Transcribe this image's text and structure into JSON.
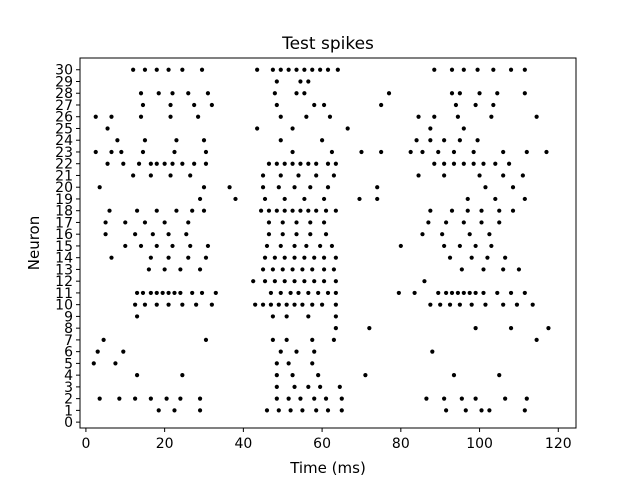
{
  "chart_data": {
    "type": "scatter",
    "title": "Test spikes",
    "xlabel": "Time (ms)",
    "ylabel": "Neuron",
    "xlim": [
      -1.5,
      124.5
    ],
    "ylim": [
      -0.5,
      31
    ],
    "xticks": [
      0,
      20,
      40,
      60,
      80,
      100,
      120
    ],
    "yticks": [
      0,
      1,
      2,
      3,
      4,
      5,
      6,
      7,
      8,
      9,
      10,
      11,
      12,
      13,
      14,
      15,
      16,
      17,
      18,
      19,
      20,
      21,
      22,
      23,
      24,
      25,
      26,
      27,
      28,
      29,
      30
    ],
    "marker_color": "#000000",
    "grid": false,
    "spikes": [
      {
        "neuron": 1,
        "times": [
          18.5,
          22.5,
          29.0,
          46.0,
          49.0,
          52.0,
          55.0,
          58.5,
          61.5,
          65.0,
          91.5,
          96.5,
          100.5,
          102.5,
          111.5
        ]
      },
      {
        "neuron": 2,
        "times": [
          3.5,
          8.5,
          12.5,
          16.5,
          20.5,
          24.0,
          29.0,
          48.5,
          51.5,
          54.5,
          58.0,
          61.0,
          65.0,
          86.5,
          91.0,
          95.5,
          99.0,
          106.5,
          112.0
        ]
      },
      {
        "neuron": 3,
        "times": [
          48.5,
          53.0,
          56.5,
          59.5,
          64.5
        ]
      },
      {
        "neuron": 4,
        "times": [
          13.0,
          24.5,
          48.5,
          52.5,
          59.0,
          71.0,
          93.5,
          105.0
        ]
      },
      {
        "neuron": 5,
        "times": [
          2.0,
          7.5,
          48.5,
          51.5,
          57.5
        ]
      },
      {
        "neuron": 6,
        "times": [
          3.0,
          9.5,
          49.5,
          53.5,
          58.0,
          88.0
        ]
      },
      {
        "neuron": 7,
        "times": [
          4.5,
          30.5,
          47.5,
          51.0,
          57.5,
          63.0,
          114.5
        ]
      },
      {
        "neuron": 8,
        "times": [
          63.5,
          72.0,
          99.0,
          108.0,
          117.5
        ]
      },
      {
        "neuron": 9,
        "times": [
          13.0,
          47.5,
          51.0,
          56.5,
          63.5
        ]
      },
      {
        "neuron": 10,
        "times": [
          12.5,
          15.0,
          18.0,
          21.0,
          24.5,
          28.0,
          32.0,
          43.0,
          45.0,
          47.0,
          49.0,
          51.0,
          53.0,
          55.0,
          57.5,
          60.0,
          63.5,
          87.5,
          90.0,
          92.5,
          95.0,
          98.0,
          101.5,
          106.0,
          109.5,
          113.5
        ]
      },
      {
        "neuron": 11,
        "times": [
          13.0,
          14.5,
          16.5,
          18.0,
          19.5,
          21.0,
          22.5,
          24.0,
          27.0,
          29.5,
          33.0,
          47.0,
          49.5,
          52.0,
          54.0,
          56.5,
          59.0,
          61.5,
          63.5,
          79.5,
          83.5,
          89.5,
          91.5,
          93.0,
          94.5,
          96.0,
          97.5,
          99.0,
          101.0,
          104.5,
          108.0,
          111.5
        ]
      },
      {
        "neuron": 12,
        "times": [
          42.5,
          45.5,
          48.0,
          50.5,
          53.0,
          55.5,
          58.0,
          60.5,
          63.5,
          86.0
        ]
      },
      {
        "neuron": 13,
        "times": [
          16.0,
          20.0,
          24.0,
          29.0,
          45.0,
          47.5,
          50.0,
          52.5,
          55.0,
          57.5,
          60.5,
          63.0,
          95.5,
          101.0,
          106.0,
          110.0
        ]
      },
      {
        "neuron": 14,
        "times": [
          6.5,
          16.5,
          21.0,
          26.0,
          30.5,
          45.5,
          48.0,
          50.5,
          53.0,
          55.5,
          58.0,
          60.5,
          63.5,
          92.5,
          98.0,
          102.0,
          106.5
        ]
      },
      {
        "neuron": 15,
        "times": [
          10.0,
          14.0,
          18.0,
          22.0,
          26.5,
          31.0,
          46.0,
          49.5,
          53.0,
          56.0,
          59.5,
          62.5,
          80.0,
          91.0,
          95.0,
          99.0,
          103.0
        ]
      },
      {
        "neuron": 16,
        "times": [
          5.0,
          12.5,
          17.0,
          21.0,
          25.5,
          46.5,
          50.0,
          53.5,
          57.0,
          61.0,
          85.5,
          90.5,
          97.5,
          102.5
        ]
      },
      {
        "neuron": 17,
        "times": [
          5.0,
          10.0,
          15.0,
          20.0,
          26.0,
          46.5,
          50.0,
          53.5,
          57.0,
          60.5,
          87.0,
          91.5,
          96.0,
          100.5,
          105.0
        ]
      },
      {
        "neuron": 18,
        "times": [
          6.0,
          13.0,
          18.0,
          23.0,
          27.0,
          30.0,
          44.5,
          46.5,
          48.5,
          50.5,
          52.5,
          54.5,
          56.5,
          58.5,
          61.0,
          63.5,
          87.5,
          93.0,
          97.0,
          100.5,
          105.0,
          108.5
        ]
      },
      {
        "neuron": 19,
        "times": [
          29.0,
          38.0,
          45.5,
          50.5,
          55.5,
          60.5,
          69.5,
          74.0,
          97.0,
          104.0,
          111.5
        ]
      },
      {
        "neuron": 20,
        "times": [
          3.5,
          30.0,
          36.5,
          45.0,
          49.0,
          53.0,
          57.0,
          61.5,
          74.0,
          101.5,
          108.5
        ]
      },
      {
        "neuron": 21,
        "times": [
          12.0,
          16.5,
          21.5,
          26.5,
          45.0,
          49.5,
          54.0,
          58.5,
          63.0,
          84.5,
          91.0,
          100.0,
          106.0,
          111.0
        ]
      },
      {
        "neuron": 22,
        "times": [
          5.5,
          9.5,
          13.5,
          16.5,
          18.0,
          20.0,
          22.0,
          24.5,
          27.5,
          30.5,
          46.5,
          48.5,
          50.5,
          52.5,
          54.5,
          56.5,
          58.5,
          61.5,
          63.5,
          88.5,
          91.0,
          93.5,
          96.0,
          98.5,
          101.0,
          104.0,
          107.5
        ]
      },
      {
        "neuron": 23,
        "times": [
          2.5,
          6.5,
          9.0,
          14.5,
          22.5,
          30.5,
          52.5,
          62.5,
          70.0,
          75.0,
          82.5,
          85.5,
          89.5,
          93.5,
          98.5,
          106.0,
          112.0,
          117.0
        ]
      },
      {
        "neuron": 24,
        "times": [
          8.0,
          15.0,
          23.0,
          30.0,
          49.5,
          60.0,
          84.0,
          87.5,
          91.0,
          95.0,
          99.5
        ]
      },
      {
        "neuron": 25,
        "times": [
          5.5,
          43.5,
          52.5,
          66.5,
          87.5,
          96.0
        ]
      },
      {
        "neuron": 26,
        "times": [
          2.5,
          6.5,
          14.0,
          21.5,
          28.5,
          49.5,
          56.0,
          62.0,
          84.5,
          88.5,
          94.5,
          103.0,
          114.5
        ]
      },
      {
        "neuron": 27,
        "times": [
          14.5,
          21.5,
          27.5,
          32.0,
          48.5,
          58.0,
          60.5,
          75.0,
          94.0,
          99.0,
          103.5
        ]
      },
      {
        "neuron": 28,
        "times": [
          14.0,
          18.5,
          22.0,
          26.0,
          31.0,
          48.0,
          53.5,
          55.5,
          77.0,
          93.0,
          95.0,
          100.0,
          104.5,
          111.5
        ]
      },
      {
        "neuron": 29,
        "times": [
          48.5,
          54.5,
          56.5
        ]
      },
      {
        "neuron": 30,
        "times": [
          12.0,
          15.0,
          18.0,
          21.0,
          24.5,
          29.5,
          43.5,
          47.5,
          49.5,
          51.5,
          53.5,
          55.5,
          57.5,
          59.5,
          61.5,
          64.0,
          88.5,
          93.0,
          96.0,
          99.5,
          103.5,
          108.0,
          111.5
        ]
      }
    ]
  }
}
